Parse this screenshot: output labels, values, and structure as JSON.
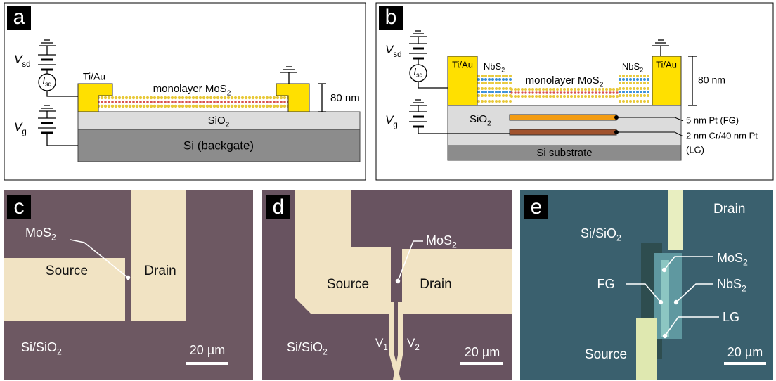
{
  "a": {
    "label": "a",
    "vsd": {
      "base": "V",
      "sub": "sd"
    },
    "isd": {
      "base": "I",
      "sub": "sd"
    },
    "vg": {
      "base": "V",
      "sub": "g"
    },
    "contact": "Ti/Au",
    "channel": {
      "base": "monolayer MoS",
      "sub": "2"
    },
    "thickness": "80 nm",
    "oxide": {
      "base": "SiO",
      "sub": "2"
    },
    "substrate": "Si (backgate)"
  },
  "b": {
    "label": "b",
    "vsd": {
      "base": "V",
      "sub": "sd"
    },
    "isd": {
      "base": "I",
      "sub": "sd"
    },
    "vg": {
      "base": "V",
      "sub": "g"
    },
    "contact_left": "Ti/Au",
    "contact_right": "Ti/Au",
    "nbs2_left": {
      "base": "NbS",
      "sub": "2"
    },
    "nbs2_right": {
      "base": "NbS",
      "sub": "2"
    },
    "channel": {
      "base": "monolayer MoS",
      "sub": "2"
    },
    "thickness": "80 nm",
    "oxide": {
      "base": "SiO",
      "sub": "2"
    },
    "fg": "5 nm Pt (FG)",
    "lg": "2 nm Cr/40 nm Pt",
    "lg_abbr": "(LG)",
    "substrate": "Si substrate"
  },
  "c": {
    "label": "c",
    "flake": {
      "base": "MoS",
      "sub": "2"
    },
    "source": "Source",
    "drain": "Drain",
    "substrate": {
      "base": "Si/SiO",
      "sub": "2"
    },
    "scale": "20 µm"
  },
  "d": {
    "label": "d",
    "flake": {
      "base": "MoS",
      "sub": "2"
    },
    "source": "Source",
    "drain": "Drain",
    "probe1": {
      "base": "V",
      "sub": "1"
    },
    "probe2": {
      "base": "V",
      "sub": "2"
    },
    "substrate": {
      "base": "Si/SiO",
      "sub": "2"
    },
    "scale": "20 µm"
  },
  "e": {
    "label": "e",
    "drain": "Drain",
    "substrate": {
      "base": "Si/SiO",
      "sub": "2"
    },
    "flake": {
      "base": "MoS",
      "sub": "2"
    },
    "fg": "FG",
    "nbs2": {
      "base": "NbS",
      "sub": "2"
    },
    "lg": "LG",
    "source": "Source",
    "scale": "20 µm"
  }
}
